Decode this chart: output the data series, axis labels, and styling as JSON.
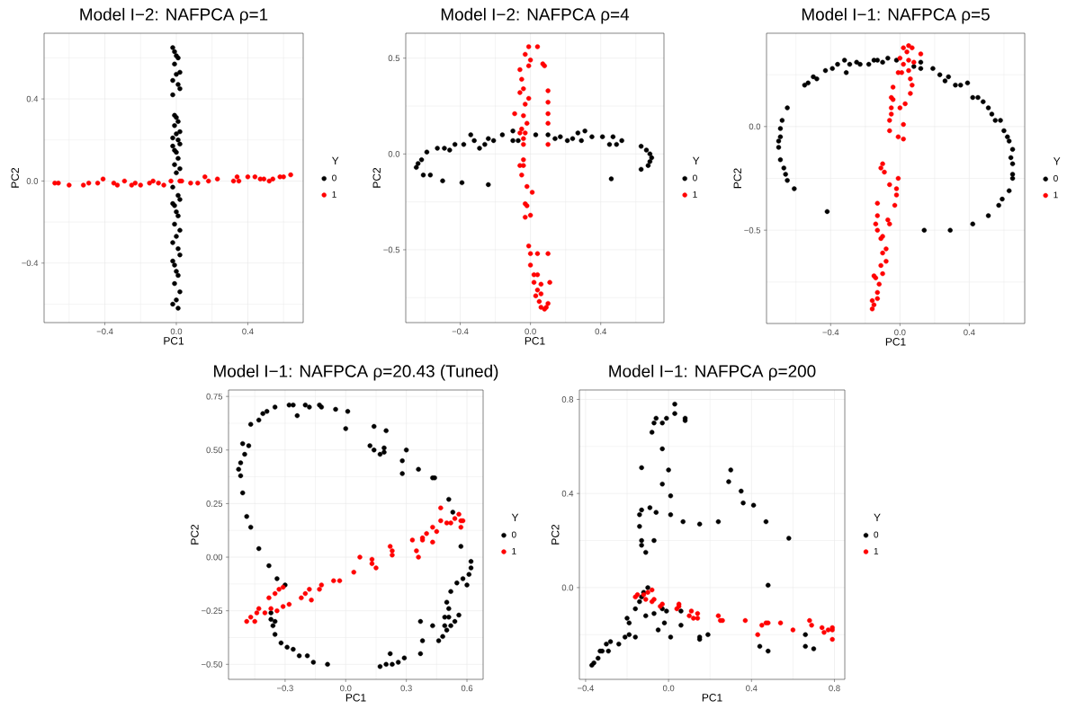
{
  "chart_data": [
    {
      "type": "scatter",
      "title": "Model I−2: NAFPCA ρ=1",
      "xlabel": "PC1",
      "ylabel": "PC2",
      "legend_title": "Y",
      "legend": "right",
      "grid": true,
      "xlim": [
        -0.74,
        0.71
      ],
      "ylim": [
        -0.69,
        0.72
      ],
      "xticks": [
        {
          "value": -0.6,
          "label": null
        },
        {
          "value": -0.4,
          "label": "−0.4"
        },
        {
          "value": -0.2,
          "label": null
        },
        {
          "value": 0,
          "label": "0.0"
        },
        {
          "value": 0.2,
          "label": null
        },
        {
          "value": 0.4,
          "label": "0.4"
        },
        {
          "value": 0.6,
          "label": null
        }
      ],
      "yticks": [
        {
          "value": -0.6,
          "label": null
        },
        {
          "value": -0.4,
          "label": "−0.4"
        },
        {
          "value": -0.2,
          "label": null
        },
        {
          "value": 0,
          "label": "0.0"
        },
        {
          "value": 0.2,
          "label": null
        },
        {
          "value": 0.4,
          "label": "0.4"
        },
        {
          "value": 0.6,
          "label": null
        }
      ],
      "series": [
        {
          "name": "0",
          "color": "#000000",
          "x": [
            -0.02,
            -0.01,
            0.0,
            0.01,
            -0.01,
            0.02,
            0.0,
            -0.02,
            0.01,
            0.02,
            -0.02,
            -0.01,
            0.0,
            0.01,
            -0.01,
            0.02,
            0.0,
            -0.02,
            0.01,
            0.02,
            -0.02,
            -0.01,
            0.0,
            0.01,
            -0.01,
            0.02,
            0.0,
            -0.02,
            0.01,
            0.02,
            -0.02,
            -0.01,
            0.0,
            0.01,
            -0.01,
            0.02,
            0.0,
            -0.02,
            0.01,
            0.02,
            -0.02,
            -0.01,
            0.0,
            0.01,
            -0.01,
            0.02,
            0.0,
            -0.02,
            0.01
          ],
          "values": [
            0.65,
            0.63,
            0.61,
            0.6,
            0.57,
            0.53,
            0.52,
            0.49,
            0.47,
            0.45,
            0.42,
            0.32,
            0.31,
            0.29,
            0.27,
            0.24,
            0.23,
            0.21,
            0.2,
            0.18,
            0.17,
            0.15,
            0.14,
            0.11,
            0.08,
            0.06,
            0.04,
            -0.03,
            -0.07,
            -0.09,
            -0.11,
            -0.12,
            -0.15,
            -0.17,
            -0.21,
            -0.24,
            -0.27,
            -0.3,
            -0.33,
            -0.36,
            -0.39,
            -0.41,
            -0.44,
            -0.46,
            -0.5,
            -0.54,
            -0.58,
            -0.6,
            -0.62
          ]
        },
        {
          "name": "1",
          "color": "#ff0000",
          "x": [
            -0.68,
            -0.66,
            -0.6,
            -0.52,
            -0.49,
            -0.44,
            -0.41,
            -0.35,
            -0.33,
            -0.29,
            -0.25,
            -0.23,
            -0.2,
            -0.15,
            -0.13,
            -0.1,
            -0.07,
            -0.03,
            0.02,
            0.03,
            0.08,
            0.12,
            0.16,
            0.18,
            0.23,
            0.32,
            0.34,
            0.35,
            0.4,
            0.44,
            0.47,
            0.49,
            0.52,
            0.54,
            0.58,
            0.6,
            0.64
          ],
          "values": [
            -0.01,
            -0.01,
            -0.02,
            -0.02,
            -0.01,
            -0.01,
            0.01,
            -0.01,
            -0.02,
            0.0,
            -0.02,
            -0.01,
            -0.02,
            -0.01,
            0.0,
            -0.01,
            -0.02,
            0.0,
            0.0,
            0.0,
            -0.01,
            -0.01,
            0.02,
            0.0,
            0.01,
            0.0,
            0.02,
            0.0,
            0.02,
            0.02,
            0.01,
            0.01,
            0.0,
            0.01,
            0.02,
            0.02,
            0.03
          ]
        }
      ]
    },
    {
      "type": "scatter",
      "title": "Model I−2: NAFPCA ρ=4",
      "xlabel": "PC1",
      "ylabel": "PC2",
      "legend_title": "Y",
      "legend": "right",
      "grid": true,
      "xlim": [
        -0.71,
        0.76
      ],
      "ylim": [
        -0.88,
        0.63
      ],
      "xticks": [
        {
          "value": -0.6,
          "label": null
        },
        {
          "value": -0.4,
          "label": "−0.4"
        },
        {
          "value": -0.2,
          "label": null
        },
        {
          "value": 0,
          "label": "0.0"
        },
        {
          "value": 0.2,
          "label": null
        },
        {
          "value": 0.4,
          "label": "0.4"
        },
        {
          "value": 0.6,
          "label": null
        }
      ],
      "yticks": [
        {
          "value": -0.75,
          "label": null
        },
        {
          "value": -0.5,
          "label": "−0.5"
        },
        {
          "value": -0.25,
          "label": null
        },
        {
          "value": 0,
          "label": "0.0"
        },
        {
          "value": 0.25,
          "label": null
        },
        {
          "value": 0.5,
          "label": "0.5"
        }
      ],
      "series": [
        {
          "name": "0",
          "color": "#000000",
          "x": [
            -0.65,
            -0.64,
            -0.62,
            -0.61,
            -0.59,
            -0.57,
            -0.53,
            -0.5,
            -0.49,
            -0.46,
            -0.43,
            -0.39,
            -0.38,
            -0.34,
            -0.32,
            -0.29,
            -0.26,
            -0.24,
            -0.24,
            -0.21,
            -0.16,
            -0.1,
            -0.1,
            -0.07,
            0.03,
            0.1,
            0.14,
            0.17,
            0.21,
            0.24,
            0.27,
            0.29,
            0.31,
            0.35,
            0.41,
            0.45,
            0.46,
            0.47,
            0.49,
            0.52,
            0.63,
            0.63,
            0.66,
            0.68,
            0.69,
            0.67,
            0.68
          ],
          "values": [
            -0.07,
            -0.05,
            -0.03,
            -0.11,
            0.01,
            -0.11,
            0.03,
            -0.14,
            0.03,
            0.02,
            0.05,
            -0.15,
            0.05,
            0.1,
            0.07,
            0.03,
            0.05,
            -0.16,
            0.08,
            0.07,
            0.1,
            0.12,
            0.07,
            0.07,
            0.1,
            0.1,
            0.08,
            0.09,
            0.07,
            0.08,
            0.11,
            0.07,
            0.12,
            0.09,
            0.09,
            0.05,
            -0.13,
            0.09,
            0.05,
            0.07,
            0.04,
            -0.08,
            0.02,
            0.0,
            -0.02,
            -0.06,
            -0.04
          ]
        },
        {
          "name": "1",
          "color": "#ff0000",
          "x": [
            -0.03,
            -0.01,
            0.04,
            0.0,
            -0.01,
            0.07,
            0.08,
            -0.06,
            -0.05,
            -0.04,
            -0.06,
            -0.01,
            -0.03,
            0.1,
            0.1,
            0.1,
            0.1,
            -0.09,
            -0.04,
            -0.02,
            -0.05,
            -0.06,
            -0.03,
            -0.04,
            -0.04,
            0.1,
            -0.04,
            -0.04,
            -0.06,
            -0.05,
            -0.02,
            0.01,
            -0.03,
            -0.02,
            -0.03,
            0.0,
            -0.01,
            0.0,
            0.04,
            0.1,
            0.0,
            0.02,
            0.04,
            0.02,
            0.06,
            0.11,
            0.04,
            0.06,
            0.03,
            0.05,
            0.1,
            0.06,
            0.08,
            0.09
          ],
          "values": [
            0.52,
            0.56,
            0.56,
            0.49,
            0.46,
            0.47,
            0.46,
            0.44,
            0.39,
            0.34,
            0.32,
            0.29,
            0.26,
            0.33,
            0.27,
            0.21,
            0.16,
            0.21,
            0.2,
            0.16,
            0.13,
            0.11,
            0.11,
            0.08,
            0.05,
            0.05,
            -0.03,
            -0.06,
            -0.06,
            -0.11,
            -0.17,
            -0.2,
            -0.26,
            -0.27,
            -0.33,
            -0.32,
            -0.48,
            -0.52,
            -0.52,
            -0.52,
            -0.58,
            -0.63,
            -0.63,
            -0.67,
            -0.68,
            -0.67,
            -0.71,
            -0.73,
            -0.74,
            -0.77,
            -0.78,
            -0.8,
            -0.81,
            -0.8
          ]
        }
      ]
    },
    {
      "type": "scatter",
      "title": "Model I−1: NAFPCA ρ=5",
      "xlabel": "PC1",
      "ylabel": "PC2",
      "legend_title": "Y",
      "legend": "right",
      "grid": true,
      "xlim": [
        -0.77,
        0.72
      ],
      "ylim": [
        -0.95,
        0.45
      ],
      "xticks": [
        {
          "value": -0.6,
          "label": null
        },
        {
          "value": -0.4,
          "label": "−0.4"
        },
        {
          "value": -0.2,
          "label": null
        },
        {
          "value": 0,
          "label": "0.0"
        },
        {
          "value": 0.2,
          "label": null
        },
        {
          "value": 0.4,
          "label": "0.4"
        },
        {
          "value": 0.6,
          "label": null
        }
      ],
      "yticks": [
        {
          "value": -0.75,
          "label": null
        },
        {
          "value": -0.5,
          "label": "−0.5"
        },
        {
          "value": -0.25,
          "label": null
        },
        {
          "value": 0,
          "label": "0.0"
        },
        {
          "value": 0.25,
          "label": null
        }
      ],
      "series": [
        {
          "name": "0",
          "color": "#000000",
          "x": [
            -0.65,
            -0.68,
            -0.69,
            -0.69,
            -0.7,
            -0.7,
            -0.69,
            -0.67,
            -0.66,
            -0.65,
            -0.61,
            -0.42,
            -0.55,
            -0.53,
            -0.5,
            -0.48,
            -0.43,
            -0.39,
            -0.36,
            -0.32,
            -0.31,
            -0.29,
            -0.25,
            -0.23,
            -0.18,
            -0.15,
            -0.13,
            -0.1,
            -0.07,
            -0.02,
            0.08,
            0.12,
            0.12,
            0.19,
            0.23,
            0.28,
            0.26,
            0.32,
            0.35,
            0.39,
            0.42,
            0.45,
            0.48,
            0.51,
            0.53,
            0.55,
            0.58,
            0.6,
            0.62,
            0.63,
            0.65,
            0.64,
            0.65,
            0.65,
            0.65,
            0.63,
            0.59,
            0.57,
            0.51,
            0.42,
            0.29,
            0.14
          ],
          "values": [
            0.09,
            0.03,
            -0.01,
            -0.05,
            -0.07,
            -0.1,
            -0.16,
            -0.2,
            -0.23,
            -0.26,
            -0.3,
            -0.41,
            0.2,
            0.21,
            0.24,
            0.23,
            0.27,
            0.28,
            0.3,
            0.32,
            0.26,
            0.3,
            0.31,
            0.3,
            0.3,
            0.32,
            0.32,
            0.31,
            0.33,
            0.32,
            0.29,
            0.31,
            0.28,
            0.28,
            0.25,
            0.24,
            0.22,
            0.2,
            0.2,
            0.21,
            0.14,
            0.14,
            0.12,
            0.09,
            0.06,
            0.03,
            0.03,
            -0.02,
            -0.05,
            -0.07,
            -0.11,
            -0.15,
            -0.18,
            -0.23,
            -0.25,
            -0.31,
            -0.35,
            -0.38,
            -0.43,
            -0.47,
            -0.5,
            -0.5
          ]
        },
        {
          "name": "1",
          "color": "#ff0000",
          "x": [
            0.02,
            0.05,
            0.07,
            0.12,
            0.04,
            0.0,
            0.05,
            0.08,
            0.02,
            0.05,
            -0.01,
            0.01,
            0.06,
            0.07,
            -0.04,
            0.06,
            -0.05,
            -0.04,
            0.03,
            -0.05,
            0.0,
            -0.05,
            -0.06,
            0.02,
            -0.06,
            -0.01,
            0.02,
            -0.1,
            -0.11,
            -0.09,
            -0.06,
            -0.01,
            -0.02,
            -0.02,
            -0.03,
            -0.13,
            -0.13,
            -0.14,
            -0.13,
            -0.07,
            -0.06,
            -0.1,
            -0.11,
            -0.08,
            -0.1,
            -0.08,
            -0.11,
            -0.1,
            -0.15,
            -0.14,
            -0.12,
            -0.13,
            -0.13,
            -0.16,
            -0.15,
            -0.16
          ],
          "values": [
            0.38,
            0.39,
            0.38,
            0.35,
            0.36,
            0.33,
            0.32,
            0.31,
            0.3,
            0.27,
            0.26,
            0.26,
            0.23,
            0.2,
            0.19,
            0.16,
            0.14,
            0.13,
            0.11,
            0.09,
            0.09,
            0.06,
            0.03,
            0.01,
            -0.02,
            -0.05,
            -0.06,
            -0.18,
            -0.2,
            -0.22,
            -0.28,
            -0.25,
            -0.3,
            -0.33,
            -0.38,
            -0.37,
            -0.43,
            -0.47,
            -0.5,
            -0.45,
            -0.47,
            -0.53,
            -0.54,
            -0.59,
            -0.61,
            -0.65,
            -0.67,
            -0.71,
            -0.72,
            -0.73,
            -0.76,
            -0.8,
            -0.83,
            -0.84,
            -0.86,
            -0.88
          ]
        }
      ]
    },
    {
      "type": "scatter",
      "title": "Model I−1: NAFPCA ρ=20.43 (Tuned)",
      "xlabel": "PC1",
      "ylabel": "PC2",
      "legend_title": "Y",
      "legend": "right",
      "grid": true,
      "xlim": [
        -0.58,
        0.68
      ],
      "ylim": [
        -0.57,
        0.78
      ],
      "xticks": [
        {
          "value": -0.45,
          "label": null
        },
        {
          "value": -0.3,
          "label": "−0.3"
        },
        {
          "value": -0.15,
          "label": null
        },
        {
          "value": 0,
          "label": "0.0"
        },
        {
          "value": 0.15,
          "label": null
        },
        {
          "value": 0.3,
          "label": "0.3"
        },
        {
          "value": 0.45,
          "label": null
        },
        {
          "value": 0.6,
          "label": "0.6"
        }
      ],
      "yticks": [
        {
          "value": -0.5,
          "label": "−0.50"
        },
        {
          "value": -0.375,
          "label": null
        },
        {
          "value": -0.25,
          "label": "−0.25"
        },
        {
          "value": -0.125,
          "label": null
        },
        {
          "value": 0,
          "label": "0.00"
        },
        {
          "value": 0.125,
          "label": null
        },
        {
          "value": 0.25,
          "label": "0.25"
        },
        {
          "value": 0.375,
          "label": null
        },
        {
          "value": 0.5,
          "label": "0.50"
        },
        {
          "value": 0.625,
          "label": null
        },
        {
          "value": 0.75,
          "label": "0.75"
        }
      ],
      "series": [
        {
          "name": "0",
          "color": "#000000",
          "x": [
            -0.47,
            -0.43,
            -0.41,
            -0.39,
            -0.35,
            -0.28,
            -0.26,
            -0.24,
            -0.2,
            -0.18,
            -0.13,
            -0.12,
            -0.05,
            0.01,
            0.0,
            0.14,
            0.2,
            0.12,
            0.14,
            0.19,
            0.17,
            0.19,
            0.3,
            0.28,
            0.28,
            0.36,
            0.43,
            0.44,
            0.51,
            0.53,
            0.57,
            0.62,
            0.62,
            0.61,
            0.6,
            0.58,
            0.55,
            0.52,
            0.56,
            0.54,
            0.52,
            0.51,
            0.5,
            0.51,
            0.49,
            0.49,
            0.5,
            0.48,
            0.46,
            0.43,
            0.37,
            0.38,
            0.37,
            0.29,
            0.26,
            0.22,
            0.23,
            0.2,
            0.17,
            -0.09,
            -0.16,
            -0.19,
            -0.23,
            -0.26,
            -0.29,
            -0.32,
            -0.35,
            -0.36,
            -0.37,
            -0.37,
            -0.35,
            -0.3,
            -0.34,
            -0.38,
            -0.43,
            -0.47,
            -0.49,
            -0.51,
            -0.52,
            -0.53,
            -0.52,
            -0.5,
            -0.51,
            -0.48
          ],
          "values": [
            0.62,
            0.64,
            0.67,
            0.68,
            0.7,
            0.71,
            0.71,
            0.66,
            0.71,
            0.7,
            0.71,
            0.7,
            0.69,
            0.68,
            0.6,
            0.61,
            0.59,
            0.52,
            0.5,
            0.51,
            0.48,
            0.49,
            0.5,
            0.45,
            0.39,
            0.41,
            0.37,
            0.37,
            0.27,
            0.21,
            0.05,
            -0.02,
            -0.05,
            -0.08,
            -0.13,
            -0.1,
            -0.12,
            -0.16,
            -0.27,
            -0.3,
            -0.32,
            -0.28,
            -0.21,
            -0.24,
            -0.28,
            -0.32,
            -0.34,
            -0.37,
            -0.39,
            -0.32,
            -0.3,
            -0.39,
            -0.45,
            -0.47,
            -0.49,
            -0.45,
            -0.5,
            -0.5,
            -0.51,
            -0.5,
            -0.49,
            -0.46,
            -0.46,
            -0.43,
            -0.42,
            -0.4,
            -0.36,
            -0.32,
            -0.29,
            -0.26,
            -0.3,
            -0.13,
            -0.1,
            -0.04,
            0.04,
            0.14,
            0.19,
            0.3,
            0.38,
            0.41,
            0.44,
            0.48,
            0.53,
            0.52
          ]
        },
        {
          "name": "1",
          "color": "#ff0000",
          "x": [
            -0.49,
            -0.47,
            -0.45,
            -0.44,
            -0.43,
            -0.4,
            -0.37,
            -0.38,
            -0.35,
            -0.33,
            -0.31,
            -0.34,
            -0.31,
            -0.28,
            -0.22,
            -0.2,
            -0.18,
            -0.17,
            -0.13,
            -0.12,
            -0.06,
            -0.03,
            0.04,
            0.07,
            0.13,
            0.13,
            0.15,
            0.22,
            0.23,
            0.23,
            0.33,
            0.35,
            0.36,
            0.38,
            0.38,
            0.4,
            0.43,
            0.43,
            0.45,
            0.47,
            0.47,
            0.5,
            0.52,
            0.54,
            0.56,
            0.57,
            0.57,
            0.58
          ],
          "values": [
            -0.3,
            -0.28,
            -0.3,
            -0.26,
            -0.24,
            -0.26,
            -0.24,
            -0.19,
            -0.17,
            -0.15,
            -0.14,
            -0.25,
            -0.23,
            -0.22,
            -0.19,
            -0.17,
            -0.15,
            -0.2,
            -0.15,
            -0.13,
            -0.11,
            -0.11,
            -0.07,
            0.0,
            -0.01,
            -0.03,
            -0.05,
            0.05,
            0.03,
            0.01,
            0.08,
            0.03,
            0.0,
            0.09,
            0.08,
            0.11,
            0.07,
            0.14,
            0.12,
            0.23,
            0.17,
            0.16,
            0.16,
            0.18,
            0.2,
            0.17,
            0.14,
            0.17
          ]
        }
      ]
    },
    {
      "type": "scatter",
      "title": "Model I−1: NAFPCA ρ=200",
      "xlabel": "PC1",
      "ylabel": "PC2",
      "legend_title": "Y",
      "legend": "right",
      "grid": true,
      "xlim": [
        -0.43,
        0.85
      ],
      "ylim": [
        -0.39,
        0.84
      ],
      "xticks": [
        {
          "value": -0.4,
          "label": "−0.4"
        },
        {
          "value": -0.2,
          "label": null
        },
        {
          "value": 0,
          "label": "0.0"
        },
        {
          "value": 0.2,
          "label": null
        },
        {
          "value": 0.4,
          "label": "0.4"
        },
        {
          "value": 0.6,
          "label": null
        },
        {
          "value": 0.8,
          "label": "0.8"
        }
      ],
      "yticks": [
        {
          "value": -0.2,
          "label": null
        },
        {
          "value": 0,
          "label": "0.0"
        },
        {
          "value": 0.2,
          "label": null
        },
        {
          "value": 0.4,
          "label": "0.4"
        },
        {
          "value": 0.6,
          "label": null
        },
        {
          "value": 0.8,
          "label": "0.8"
        }
      ],
      "series": [
        {
          "name": "0",
          "color": "#000000",
          "x": [
            0.03,
            0.03,
            -0.01,
            -0.03,
            -0.06,
            -0.07,
            0.08,
            0.08,
            -0.08,
            -0.03,
            -0.13,
            0.0,
            -0.03,
            0.01,
            -0.09,
            -0.13,
            -0.14,
            -0.06,
            0.01,
            0.07,
            0.15,
            0.24,
            0.29,
            0.3,
            0.35,
            0.36,
            0.41,
            0.47,
            0.58,
            0.48,
            -0.14,
            -0.13,
            -0.13,
            -0.11,
            -0.07,
            -0.1,
            -0.12,
            -0.14,
            -0.16,
            -0.11,
            -0.07,
            -0.03,
            -0.01,
            -0.02,
            -0.05,
            0.01,
            0.06,
            0.06,
            0.15,
            0.15,
            0.19,
            -0.2,
            -0.19,
            -0.19,
            -0.16,
            -0.21,
            -0.24,
            -0.28,
            -0.3,
            -0.29,
            -0.32,
            -0.33,
            -0.34,
            -0.36,
            -0.37,
            0.44,
            0.48,
            0.66,
            0.66,
            0.7,
            -0.13
          ],
          "values": [
            0.78,
            0.74,
            0.72,
            0.7,
            0.72,
            0.7,
            0.72,
            0.71,
            0.66,
            0.59,
            0.51,
            0.5,
            0.44,
            0.39,
            0.34,
            0.33,
            0.31,
            0.32,
            0.31,
            0.28,
            0.27,
            0.28,
            0.45,
            0.5,
            0.41,
            0.36,
            0.35,
            0.28,
            0.21,
            0.01,
            0.26,
            0.2,
            0.18,
            0.15,
            0.2,
            0.0,
            -0.02,
            -0.06,
            -0.09,
            -0.12,
            -0.11,
            -0.09,
            -0.1,
            -0.15,
            -0.18,
            -0.21,
            -0.1,
            -0.16,
            -0.21,
            -0.22,
            -0.2,
            -0.13,
            -0.15,
            -0.2,
            -0.21,
            -0.21,
            -0.24,
            -0.23,
            -0.24,
            -0.27,
            -0.27,
            -0.27,
            -0.3,
            -0.32,
            -0.33,
            -0.25,
            -0.27,
            -0.2,
            -0.25,
            -0.26,
            -0.04
          ]
        },
        {
          "name": "1",
          "color": "#ff0000",
          "x": [
            -0.16,
            -0.15,
            -0.13,
            -0.12,
            -0.1,
            -0.08,
            -0.11,
            -0.08,
            -0.07,
            -0.04,
            -0.03,
            0.04,
            0.05,
            0.05,
            0.1,
            0.11,
            0.12,
            0.14,
            0.14,
            0.24,
            0.25,
            0.26,
            0.37,
            0.43,
            0.45,
            0.47,
            0.48,
            0.54,
            0.6,
            0.68,
            0.69,
            0.74,
            0.75,
            0.77,
            0.79,
            0.79,
            0.79
          ],
          "values": [
            -0.04,
            -0.03,
            null,
            -0.03,
            -0.02,
            -0.01,
            -0.05,
            -0.06,
            -0.05,
            -0.08,
            -0.07,
            -0.09,
            -0.07,
            -0.08,
            -0.12,
            -0.1,
            -0.13,
            -0.11,
            -0.13,
            -0.12,
            -0.14,
            -0.14,
            -0.14,
            -0.2,
            -0.16,
            -0.15,
            -0.15,
            -0.15,
            -0.18,
            -0.14,
            -0.16,
            -0.17,
            -0.19,
            -0.18,
            -0.17,
            -0.18,
            -0.22
          ]
        }
      ]
    }
  ]
}
